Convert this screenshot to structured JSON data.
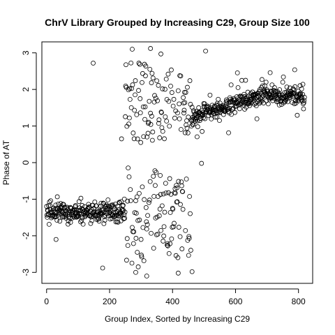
{
  "chart_data": {
    "type": "scatter",
    "title": "ChrV Library Grouped by Increasing C29, Group Size 100",
    "xlabel": "Group Index, Sorted by Increasing C29",
    "ylabel": "Phase of AT",
    "xlim": [
      -15,
      845
    ],
    "ylim": [
      -3.3,
      3.3
    ],
    "xticks": [
      0,
      200,
      400,
      600,
      800
    ],
    "yticks": [
      -3,
      -2,
      -1,
      0,
      1,
      2,
      3
    ],
    "grid": false,
    "legend": "none",
    "marker": "open-circle",
    "n_points": 820,
    "segments": [
      {
        "x": [
          0,
          250
        ],
        "y_center": -1.35,
        "y_spread": 0.28
      },
      {
        "x": [
          250,
          460
        ],
        "y_bimodal": [
          1.6,
          -1.5
        ],
        "y_spread": 1.0
      },
      {
        "x": [
          460,
          820
        ],
        "y_start": 1.25,
        "y_end": 1.85,
        "y_spread": 0.28
      }
    ],
    "outliers": [
      {
        "x": 148,
        "y": 2.72
      },
      {
        "x": 30,
        "y": -2.1
      },
      {
        "x": 178,
        "y": -2.88
      },
      {
        "x": 272,
        "y": 3.1
      },
      {
        "x": 330,
        "y": 3.12
      },
      {
        "x": 363,
        "y": 2.97
      },
      {
        "x": 505,
        "y": 3.05
      },
      {
        "x": 283,
        "y": -3.0
      },
      {
        "x": 418,
        "y": -3.02
      },
      {
        "x": 462,
        "y": -2.98
      },
      {
        "x": 492,
        "y": -0.02
      },
      {
        "x": 238,
        "y": 0.65
      },
      {
        "x": 318,
        "y": -3.1
      }
    ]
  }
}
